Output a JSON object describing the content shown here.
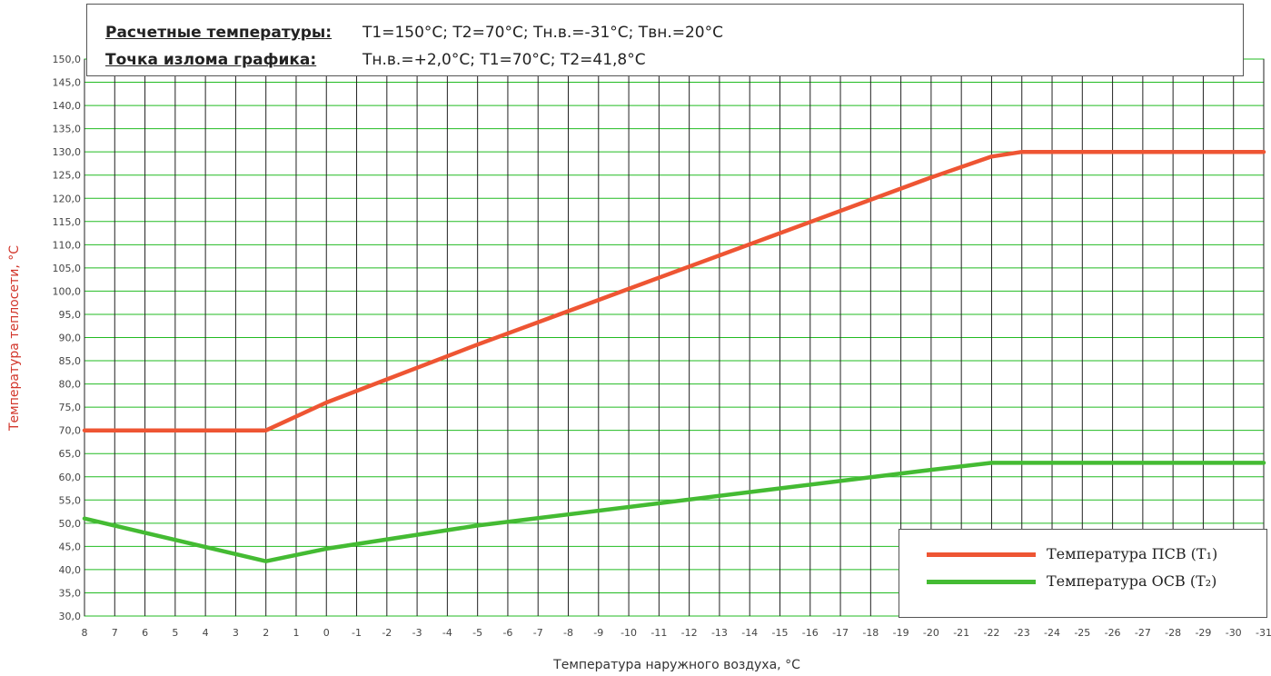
{
  "header": {
    "row1_label": "Расчетные температуры:",
    "row1_value": "T1=150°C; T2=70°C; Тн.в.=-31°C; Твн.=20°C",
    "row2_label": "Точка излома графика:",
    "row2_value": "Тн.в.=+2,0°C; T1=70°C; T2=41,8°C"
  },
  "chart_data": {
    "type": "line",
    "xlabel": "Температура наружного воздуха, °С",
    "ylabel": "Температура теплосети, °С",
    "ylim": [
      30,
      150
    ],
    "ytick_step": 5,
    "ytick_labels": [
      "30,0",
      "35,0",
      "40,0",
      "45,0",
      "50,0",
      "55,0",
      "60,0",
      "65,0",
      "70,0",
      "75,0",
      "80,0",
      "85,0",
      "90,0",
      "95,0",
      "100,0",
      "105,0",
      "110,0",
      "115,0",
      "120,0",
      "125,0",
      "130,0",
      "135,0",
      "140,0",
      "145,0",
      "150,0"
    ],
    "x_categories": [
      "8",
      "7",
      "6",
      "5",
      "4",
      "3",
      "2",
      "1",
      "0",
      "-1",
      "-2",
      "-3",
      "-4",
      "-5",
      "-6",
      "-7",
      "-8",
      "-9",
      "-10",
      "-11",
      "-12",
      "-13",
      "-14",
      "-15",
      "-16",
      "-17",
      "-18",
      "-19",
      "-20",
      "-21",
      "-22",
      "-23",
      "-24",
      "-25",
      "-26",
      "-27",
      "-28",
      "-29",
      "-30",
      "-31"
    ],
    "grid": true,
    "grid_color": "#22bb22",
    "legend_position": "bottom-right",
    "series": [
      {
        "name": "Температура ПСВ (T₁)",
        "color": "#ee5533",
        "points": [
          [
            8,
            70
          ],
          [
            2,
            70
          ],
          [
            0,
            76
          ],
          [
            -5,
            88.5
          ],
          [
            -10,
            100.5
          ],
          [
            -15,
            112.5
          ],
          [
            -20,
            124.5
          ],
          [
            -22,
            129
          ],
          [
            -23,
            130
          ],
          [
            -31,
            130
          ]
        ]
      },
      {
        "name": "Температура ОСВ (T₂)",
        "color": "#44bb33",
        "points": [
          [
            8,
            51
          ],
          [
            2,
            41.8
          ],
          [
            0,
            44.5
          ],
          [
            -5,
            49.5
          ],
          [
            -10,
            53.5
          ],
          [
            -15,
            57.5
          ],
          [
            -20,
            61.5
          ],
          [
            -22,
            63
          ],
          [
            -31,
            63
          ]
        ]
      }
    ]
  }
}
